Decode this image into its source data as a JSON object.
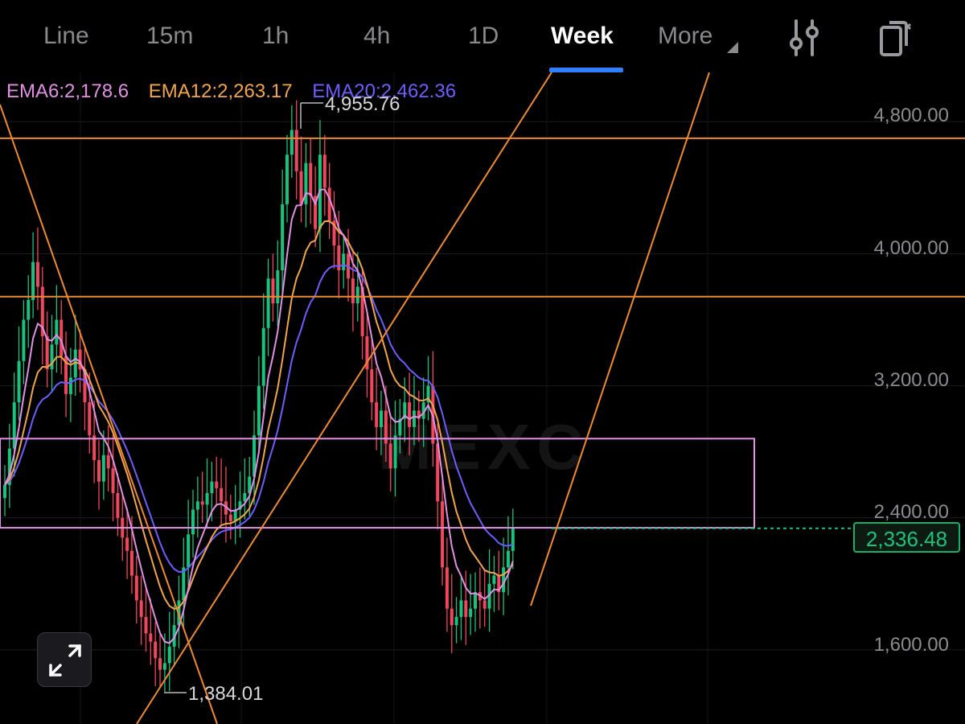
{
  "toolbar": {
    "tabs": [
      {
        "label": "Line",
        "active": false
      },
      {
        "label": "15m",
        "active": false
      },
      {
        "label": "1h",
        "active": false
      },
      {
        "label": "4h",
        "active": false
      },
      {
        "label": "1D",
        "active": false
      },
      {
        "label": "Week",
        "active": true
      },
      {
        "label": "More",
        "active": false
      }
    ],
    "icons": [
      "indicator-settings-icon",
      "copy-device-icon"
    ],
    "accent_color": "#2f80ff"
  },
  "ema": {
    "ema6": "EMA6:2,178.6",
    "ema12": "EMA12:2,263.17",
    "ema20": "EMA20:2,462.36",
    "colors": {
      "ema6": "#e38fe6",
      "ema12": "#f3a548",
      "ema20": "#6f5cff"
    }
  },
  "chart_data": {
    "type": "candlestick",
    "y_ticks": [
      "4,800.00",
      "4,000.00",
      "3,200.00",
      "2,400.00",
      "1,600.00"
    ],
    "y_tick_values": [
      4800,
      4000,
      3200,
      2400,
      1600
    ],
    "ylim": [
      1200,
      5050
    ],
    "high_label": "4,955.76",
    "low_label": "1,384.01",
    "current_price": "2,336.48",
    "current_price_value": 2336.48,
    "horizontal_levels": [
      4700,
      3740
    ],
    "zone": {
      "top": 2880,
      "bottom": 2340
    },
    "closes": [
      2600,
      2820,
      3100,
      3350,
      3600,
      3720,
      3950,
      3800,
      3500,
      3300,
      3450,
      3600,
      3380,
      3150,
      3250,
      3420,
      3300,
      3100,
      2900,
      2750,
      2620,
      2780,
      2700,
      2550,
      2400,
      2280,
      2200,
      2050,
      1900,
      1800,
      1700,
      1650,
      1550,
      1480,
      1520,
      1620,
      1750,
      1900,
      2100,
      2300,
      2450,
      2500,
      2480,
      2550,
      2620,
      2580,
      2500,
      2420,
      2380,
      2450,
      2500,
      2550,
      2650,
      2900,
      3200,
      3550,
      3850,
      3700,
      3900,
      4300,
      4600,
      4750,
      4500,
      4300,
      4550,
      4350,
      4150,
      4600,
      4400,
      4200,
      4050,
      3900,
      4000,
      3850,
      3700,
      3800,
      3500,
      3300,
      3100,
      2950,
      3050,
      2850,
      2700,
      2900,
      3000,
      3100,
      2950,
      3050,
      3000,
      3100,
      3200,
      2850,
      2500,
      2100,
      1850,
      1750,
      1800,
      1900,
      1800,
      1850,
      1950,
      1900,
      1850,
      2000,
      2050,
      1950,
      2100,
      2200,
      2336
    ]
  },
  "watermark": "MEXC"
}
